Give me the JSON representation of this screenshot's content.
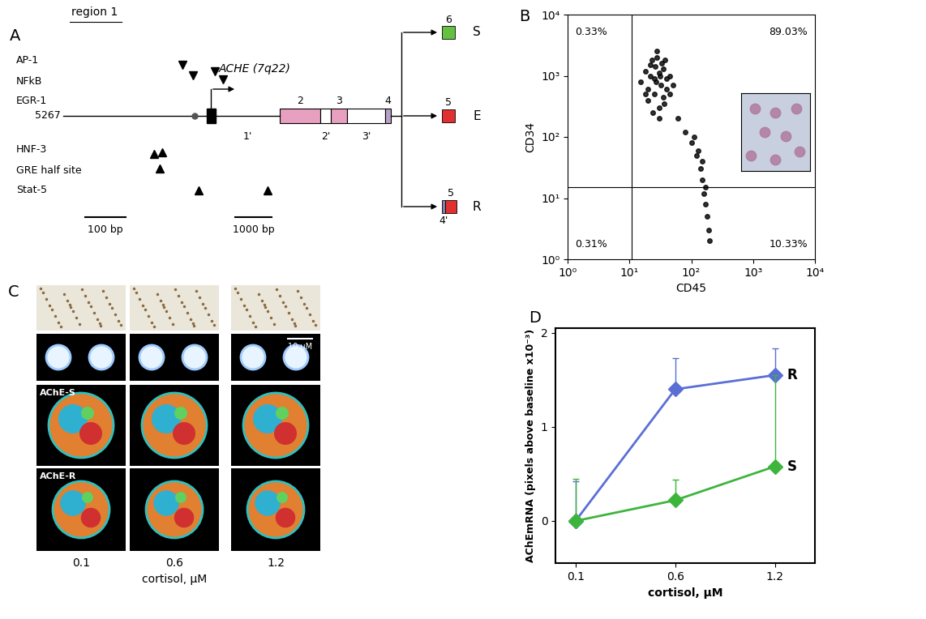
{
  "panel_labels": [
    "A",
    "B",
    "C",
    "D"
  ],
  "diagram": {
    "region_label": "region 1",
    "gene": "ACHE (7q22)",
    "start": "5267",
    "factors_above": [
      "AP-1",
      "NFkB",
      "EGR-1"
    ],
    "factors_below": [
      "HNF-3",
      "GRE half site",
      "Stat-5"
    ],
    "scale_bars": [
      "100 bp",
      "1000 bp"
    ],
    "exons": [
      "2",
      "3",
      "4"
    ],
    "introns": [
      "1'",
      "2'",
      "3'"
    ],
    "variants": [
      {
        "name": "S",
        "exon": "6"
      },
      {
        "name": "E",
        "exon": "5"
      },
      {
        "name": "R",
        "exon": "5",
        "extra": "4'"
      }
    ]
  },
  "images": {
    "rows": [
      "AChE-S",
      "AChE-R"
    ],
    "scale_label": "10 μM",
    "columns": [
      "0.1",
      "0.6",
      "1.2"
    ],
    "x_label": "cortisol, μM"
  },
  "chart_data": [
    {
      "type": "scatter",
      "x_label": "CD45",
      "y_label": "CD34",
      "log": true,
      "color": "#000000",
      "xlim": [
        1,
        10000
      ],
      "ylim": [
        1,
        10000
      ],
      "xticks": [
        {
          "value": 1,
          "label": "10⁰"
        },
        {
          "value": 10,
          "label": "10¹"
        },
        {
          "value": 100,
          "label": "10²"
        },
        {
          "value": 1000,
          "label": "10³"
        },
        {
          "value": 10000,
          "label": "10⁴"
        }
      ],
      "yticks": [
        {
          "value": 1,
          "label": "10⁰"
        },
        {
          "value": 10,
          "label": "10¹"
        },
        {
          "value": 100,
          "label": "10²"
        },
        {
          "value": 1000,
          "label": "10³"
        },
        {
          "value": 10000,
          "label": "10⁴"
        }
      ],
      "gates": {
        "x": 11,
        "y": 15
      },
      "quadrant_labels": {
        "upper_left": "0.33%",
        "upper_right": "89.03%",
        "lower_left": "0.31%",
        "lower_right": "10.33%"
      },
      "x": [
        15,
        18,
        20,
        22,
        25,
        28,
        30,
        32,
        35,
        38,
        40,
        45,
        50,
        20,
        25,
        30,
        35,
        28,
        22,
        26,
        33,
        40,
        18,
        24,
        30,
        36,
        27,
        31,
        23,
        45,
        60,
        80,
        100,
        120,
        140,
        150,
        160,
        170,
        180,
        190,
        200,
        150,
        170,
        130,
        110
      ],
      "y": [
        800,
        1200,
        600,
        1500,
        900,
        2000,
        1100,
        700,
        1300,
        1800,
        900,
        1000,
        700,
        400,
        500,
        300,
        450,
        2500,
        1000,
        1400,
        1600,
        600,
        500,
        250,
        200,
        350,
        800,
        1000,
        1800,
        500,
        200,
        120,
        80,
        50,
        30,
        20,
        12,
        8,
        5,
        3,
        2,
        40,
        15,
        60,
        100
      ]
    },
    {
      "type": "line",
      "x_label": "cortisol, μM",
      "y_label": "AChEmRNA (pixels above baseline x10⁻³)",
      "categories": [
        "0.1",
        "0.6",
        "1.2"
      ],
      "ylim": [
        -0.45,
        2.05
      ],
      "yticks": [
        0,
        1,
        2
      ],
      "legend": false,
      "series": [
        {
          "name": "R",
          "color": "#5a6fd6",
          "marker": "diamond",
          "values": [
            0,
            1.4,
            1.55
          ],
          "errors": [
            0.42,
            0.33,
            0.28
          ]
        },
        {
          "name": "S",
          "color": "#3db53d",
          "marker": "diamond",
          "values": [
            0,
            0.22,
            0.58
          ],
          "errors": [
            0.45,
            0.22,
            0.97
          ]
        }
      ]
    }
  ]
}
